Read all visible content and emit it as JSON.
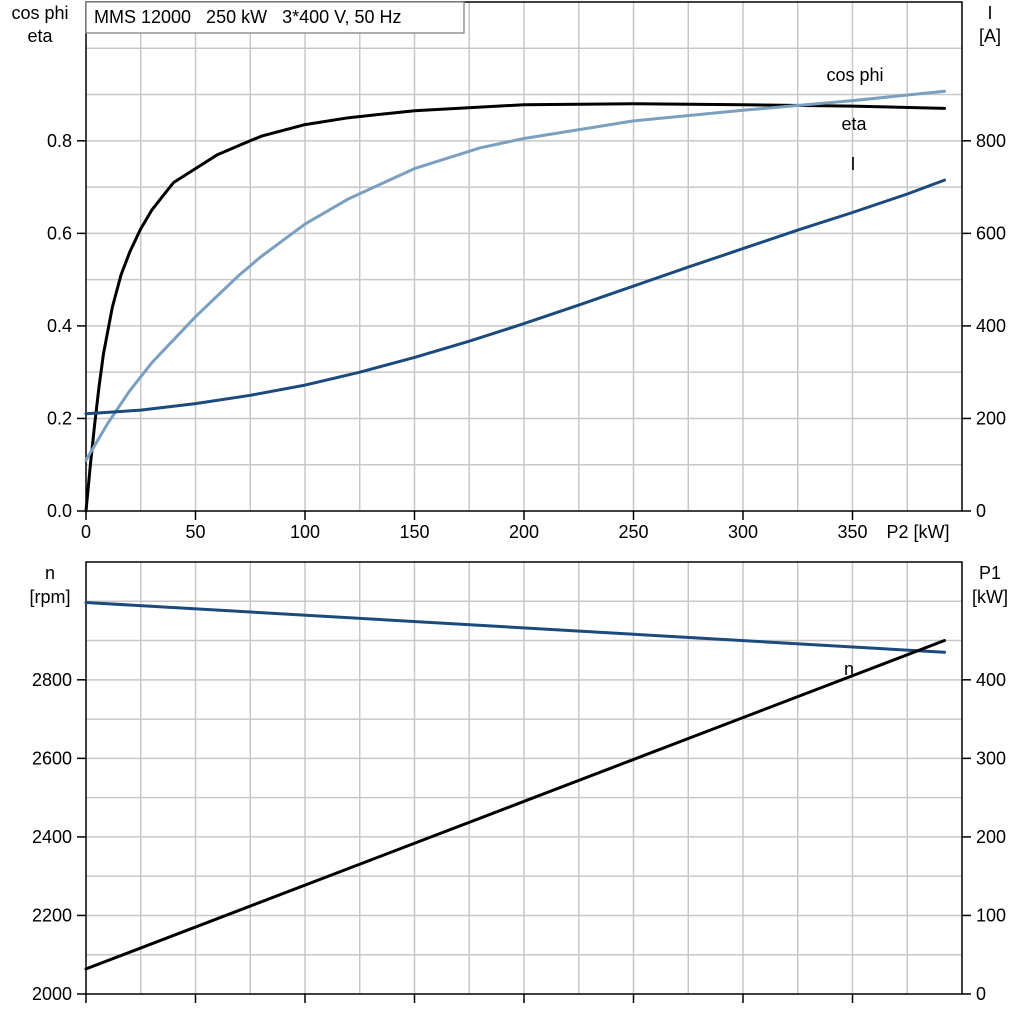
{
  "colors": {
    "black": "#000000",
    "blue": "#1a4a7e",
    "lightblue": "#7a9fc0",
    "grid": "#c8c8c8"
  },
  "chart_data": [
    {
      "type": "line",
      "title": "MMS 12000   250 kW   3*400 V, 50 Hz",
      "xlabel": "P2 [kW]",
      "xlim": [
        0,
        400
      ],
      "xticks": [
        0,
        50,
        100,
        150,
        200,
        250,
        300,
        350
      ],
      "ylabel_left": [
        "cos phi",
        "eta"
      ],
      "ylim_left": [
        0,
        1.1
      ],
      "yticks_left": [
        0.0,
        0.2,
        0.4,
        0.6,
        0.8
      ],
      "ytick_labels_left": [
        "0.0",
        "0.2",
        "0.4",
        "0.6",
        "0.8"
      ],
      "ylabel_right": [
        "I",
        "[A]"
      ],
      "ylim_right": [
        0,
        1100
      ],
      "yticks_right": [
        0,
        200,
        400,
        600,
        800
      ],
      "grid": true,
      "series": [
        {
          "name": "eta",
          "axis": "left",
          "color": "black",
          "x": [
            0,
            2,
            4,
            6,
            8,
            12,
            16,
            20,
            25,
            30,
            35,
            40,
            50,
            60,
            70,
            80,
            100,
            120,
            150,
            200,
            250,
            300,
            350,
            392
          ],
          "y": [
            0.0,
            0.1,
            0.19,
            0.27,
            0.34,
            0.44,
            0.51,
            0.56,
            0.61,
            0.65,
            0.68,
            0.71,
            0.74,
            0.77,
            0.79,
            0.81,
            0.835,
            0.85,
            0.865,
            0.878,
            0.88,
            0.878,
            0.875,
            0.87
          ]
        },
        {
          "name": "cos phi",
          "axis": "left",
          "color": "lightblue",
          "x": [
            0,
            10,
            20,
            30,
            40,
            50,
            60,
            70,
            80,
            100,
            120,
            150,
            180,
            200,
            250,
            300,
            350,
            392
          ],
          "y": [
            0.11,
            0.19,
            0.26,
            0.32,
            0.37,
            0.42,
            0.465,
            0.51,
            0.55,
            0.62,
            0.675,
            0.74,
            0.785,
            0.805,
            0.843,
            0.866,
            0.887,
            0.907
          ]
        },
        {
          "name": "I",
          "axis": "right",
          "color": "blue",
          "x": [
            0,
            25,
            50,
            75,
            100,
            125,
            150,
            175,
            200,
            225,
            250,
            275,
            300,
            325,
            350,
            375,
            392
          ],
          "y": [
            210,
            218,
            232,
            250,
            272,
            300,
            332,
            367,
            405,
            445,
            486,
            527,
            567,
            607,
            645,
            685,
            715
          ]
        }
      ]
    },
    {
      "type": "line",
      "xlim": [
        0,
        400
      ],
      "xticks": [
        0,
        50,
        100,
        150,
        200,
        250,
        300,
        350
      ],
      "ylabel_left": [
        "n",
        "[rpm]"
      ],
      "ylim_left": [
        2000,
        3100
      ],
      "yticks_left": [
        2000,
        2200,
        2400,
        2600,
        2800
      ],
      "ylabel_right": [
        "P1",
        "[kW]"
      ],
      "ylim_right": [
        0,
        550
      ],
      "yticks_right": [
        0,
        100,
        200,
        300,
        400
      ],
      "grid": true,
      "series": [
        {
          "name": "n",
          "axis": "left",
          "color": "blue",
          "x": [
            0,
            392
          ],
          "y": [
            2997,
            2870
          ]
        },
        {
          "axis": "right",
          "color": "black",
          "x": [
            0,
            392
          ],
          "y": [
            32,
            450
          ]
        }
      ]
    }
  ]
}
